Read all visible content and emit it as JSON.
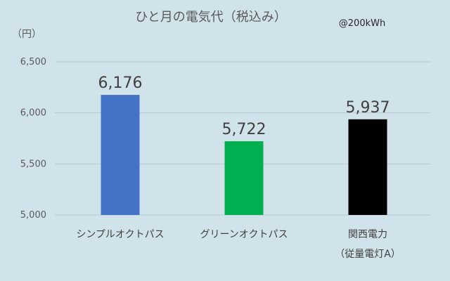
{
  "chart_data": {
    "type": "bar",
    "title": "ひと月の電気代（税込み）",
    "note": "@200kWh",
    "ylabel": "（円）",
    "xlabel": "",
    "ylim": [
      5000,
      6500
    ],
    "yticks": [
      5000,
      5500,
      6000,
      6500
    ],
    "ytick_labels": [
      "5,000",
      "5,500",
      "6,000",
      "6,500"
    ],
    "grid": true,
    "categories": [
      "シンプルオクトパス",
      "グリーンオクトパス",
      "関西電力（従量電灯A）"
    ],
    "category_lines": [
      [
        "シンプルオクトパス"
      ],
      [
        "グリーンオクトパス"
      ],
      [
        "関西電力",
        "（従量電灯A）"
      ]
    ],
    "values": [
      6176,
      5722,
      5937
    ],
    "value_labels": [
      "6,176",
      "5,722",
      "5,937"
    ],
    "colors": [
      "#4472c4",
      "#00b050",
      "#000000"
    ]
  }
}
